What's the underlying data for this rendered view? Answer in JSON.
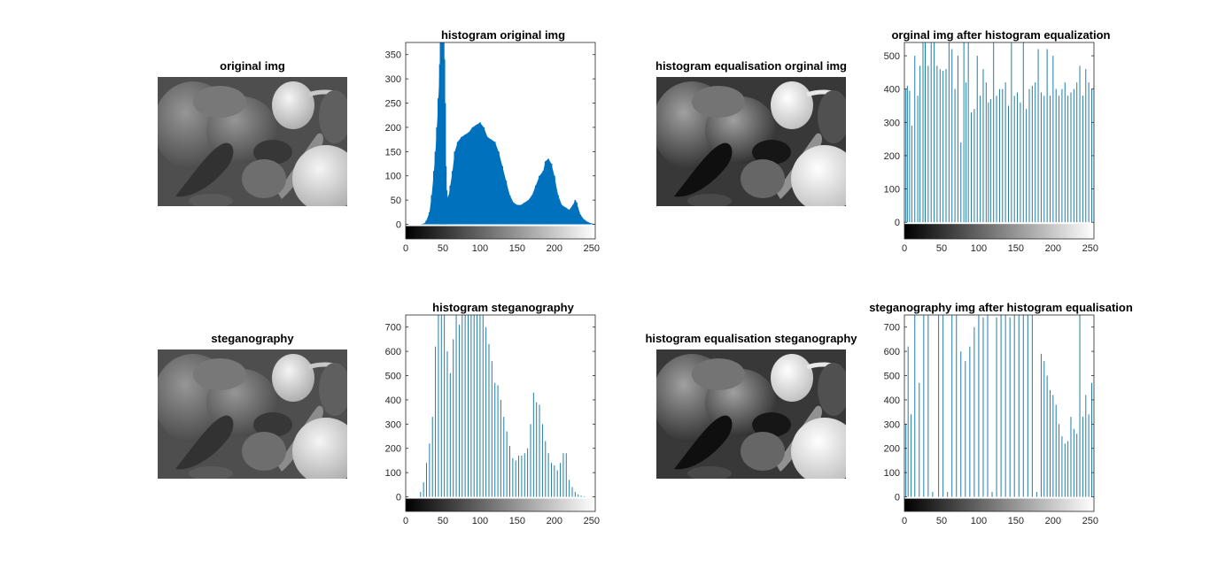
{
  "images": [
    {
      "title": "original img"
    },
    {
      "title": "histogram equalisation orginal img"
    },
    {
      "title": "steganography"
    },
    {
      "title": "histogram equalisation steganography"
    }
  ],
  "colors": {
    "bar_fill": "#0072BD",
    "stem": "#1f7ea8",
    "axis": "#262626"
  },
  "chart_data": [
    {
      "type": "bar",
      "title": "histogram original img",
      "xlabel": "",
      "ylabel": "",
      "xlim": [
        0,
        255
      ],
      "ylim": [
        -30,
        375
      ],
      "yticks": [
        0,
        50,
        100,
        150,
        200,
        250,
        300,
        350
      ],
      "xticks": [
        0,
        50,
        100,
        150,
        200,
        250
      ],
      "grayscale_colorbar": true,
      "x": [
        20,
        25,
        28,
        32,
        35,
        38,
        40,
        42,
        44,
        46,
        47,
        48,
        49,
        50,
        51,
        52,
        53,
        54,
        55,
        56,
        58,
        60,
        63,
        66,
        70,
        75,
        80,
        85,
        90,
        95,
        100,
        105,
        110,
        115,
        120,
        125,
        130,
        135,
        140,
        145,
        150,
        155,
        160,
        165,
        170,
        175,
        180,
        185,
        188,
        192,
        196,
        200,
        205,
        210,
        215,
        220,
        225,
        228,
        230,
        235,
        240,
        245,
        250,
        255
      ],
      "values": [
        0,
        2,
        8,
        25,
        60,
        110,
        150,
        200,
        260,
        330,
        375,
        375,
        375,
        375,
        375,
        340,
        250,
        120,
        70,
        55,
        60,
        80,
        110,
        150,
        170,
        180,
        185,
        190,
        200,
        205,
        210,
        200,
        180,
        175,
        170,
        150,
        120,
        90,
        60,
        45,
        40,
        40,
        45,
        50,
        60,
        80,
        100,
        110,
        130,
        135,
        125,
        100,
        60,
        40,
        35,
        30,
        40,
        50,
        45,
        20,
        10,
        5,
        2,
        0
      ]
    },
    {
      "type": "bar",
      "title": "orginal img after histogram equalization",
      "xlabel": "",
      "ylabel": "",
      "xlim": [
        0,
        255
      ],
      "ylim": [
        -50,
        540
      ],
      "yticks": [
        0,
        100,
        200,
        300,
        400,
        500
      ],
      "xticks": [
        0,
        50,
        100,
        150,
        200,
        250
      ],
      "grayscale_colorbar": true,
      "x": [
        2,
        4,
        7,
        10,
        14,
        18,
        21,
        25,
        28,
        32,
        36,
        40,
        44,
        48,
        52,
        56,
        60,
        64,
        68,
        72,
        76,
        80,
        83,
        86,
        90,
        94,
        98,
        102,
        106,
        110,
        113,
        116,
        120,
        124,
        128,
        132,
        136,
        140,
        144,
        148,
        152,
        156,
        160,
        164,
        168,
        172,
        176,
        180,
        184,
        188,
        192,
        196,
        200,
        204,
        208,
        212,
        216,
        220,
        224,
        228,
        232,
        236,
        240,
        244,
        248,
        252,
        255
      ],
      "values": [
        400,
        410,
        395,
        290,
        500,
        380,
        470,
        540,
        540,
        470,
        540,
        540,
        470,
        460,
        455,
        460,
        540,
        520,
        400,
        500,
        240,
        540,
        420,
        540,
        330,
        340,
        500,
        380,
        460,
        420,
        360,
        370,
        540,
        380,
        400,
        400,
        420,
        350,
        540,
        380,
        390,
        360,
        540,
        340,
        400,
        410,
        420,
        520,
        390,
        380,
        520,
        380,
        500,
        400,
        380,
        400,
        420,
        380,
        390,
        400,
        420,
        470,
        380,
        460,
        420,
        400,
        410
      ]
    },
    {
      "type": "bar",
      "title": "histogram steganography",
      "xlabel": "",
      "ylabel": "",
      "xlim": [
        0,
        255
      ],
      "ylim": [
        -60,
        750
      ],
      "yticks": [
        0,
        100,
        200,
        300,
        400,
        500,
        600,
        700
      ],
      "xticks": [
        0,
        50,
        100,
        150,
        200,
        250
      ],
      "grayscale_colorbar": true,
      "x": [
        20,
        24,
        28,
        32,
        36,
        40,
        44,
        48,
        52,
        56,
        60,
        64,
        68,
        72,
        76,
        80,
        84,
        88,
        92,
        96,
        100,
        104,
        108,
        112,
        116,
        120,
        124,
        128,
        132,
        136,
        140,
        144,
        148,
        152,
        156,
        160,
        164,
        168,
        172,
        176,
        180,
        184,
        188,
        192,
        196,
        200,
        204,
        208,
        212,
        216,
        220,
        224,
        228,
        232,
        236,
        240,
        244,
        248
      ],
      "values": [
        20,
        60,
        140,
        220,
        330,
        620,
        750,
        750,
        750,
        600,
        510,
        650,
        750,
        710,
        750,
        750,
        750,
        750,
        750,
        750,
        750,
        750,
        700,
        630,
        560,
        470,
        460,
        400,
        330,
        270,
        210,
        160,
        150,
        170,
        170,
        180,
        200,
        300,
        430,
        390,
        380,
        300,
        230,
        180,
        140,
        130,
        110,
        140,
        180,
        180,
        70,
        40,
        20,
        10,
        5,
        2,
        0,
        0
      ]
    },
    {
      "type": "bar",
      "title": "steganography  img after histogram equalisation",
      "xlabel": "",
      "ylabel": "",
      "xlim": [
        0,
        255
      ],
      "ylim": [
        -60,
        750
      ],
      "yticks": [
        0,
        100,
        200,
        300,
        400,
        500,
        600,
        700
      ],
      "xticks": [
        0,
        50,
        100,
        150,
        200,
        250
      ],
      "grayscale_colorbar": true,
      "x": [
        2,
        5,
        9,
        14,
        20,
        26,
        32,
        38,
        46,
        52,
        58,
        64,
        70,
        76,
        82,
        88,
        94,
        100,
        106,
        112,
        118,
        124,
        130,
        136,
        142,
        148,
        154,
        160,
        166,
        172,
        178,
        184,
        188,
        192,
        196,
        200,
        204,
        208,
        212,
        216,
        220,
        224,
        228,
        232,
        236,
        240,
        244,
        248,
        252,
        255
      ],
      "values": [
        300,
        620,
        340,
        750,
        470,
        750,
        750,
        20,
        750,
        750,
        20,
        750,
        750,
        600,
        560,
        620,
        700,
        750,
        740,
        750,
        20,
        740,
        750,
        750,
        740,
        750,
        750,
        750,
        750,
        750,
        20,
        590,
        560,
        500,
        440,
        420,
        380,
        300,
        250,
        220,
        230,
        330,
        280,
        260,
        750,
        330,
        420,
        340,
        470,
        300
      ]
    }
  ]
}
